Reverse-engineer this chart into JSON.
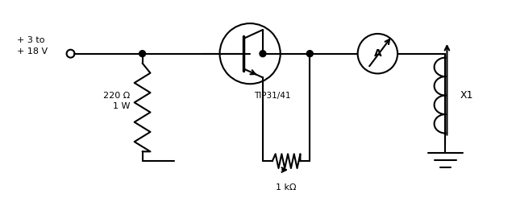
{
  "bg_color": "#ffffff",
  "line_color": "#000000",
  "lw": 1.5,
  "voltage_label": "+ 3 to\n+ 18 V",
  "r1_label": "220 Ω\n1 W",
  "r2_label": "1 kΩ",
  "transistor_label": "TIP31/41",
  "ammeter_label": "A",
  "inductor_label": "X1"
}
